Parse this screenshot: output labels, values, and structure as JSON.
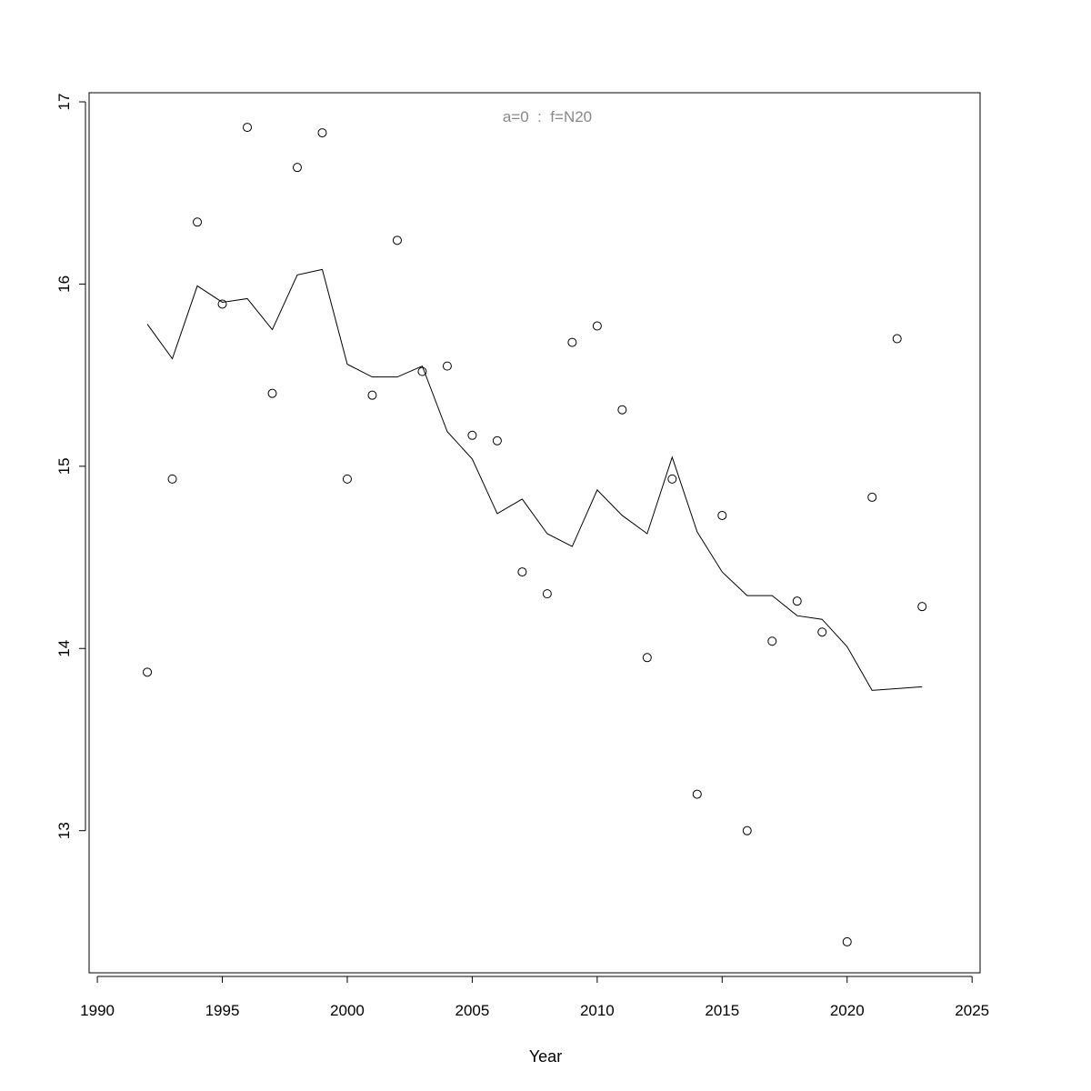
{
  "chart_data": {
    "type": "scatter",
    "title": "a=0  :  f=N20",
    "xlabel": "Year",
    "ylabel": "",
    "xlim": [
      1989.67,
      2025.32
    ],
    "ylim": [
      12.22,
      17.05
    ],
    "xticks": [
      1990,
      1995,
      2000,
      2005,
      2010,
      2015,
      2020,
      2025
    ],
    "yticks": [
      13,
      14,
      15,
      16,
      17
    ],
    "grid": false,
    "title_color": "#888888",
    "x": [
      1992,
      1993,
      1994,
      1995,
      1996,
      1997,
      1998,
      1999,
      2000,
      2001,
      2002,
      2003,
      2004,
      2005,
      2006,
      2007,
      2008,
      2009,
      2010,
      2011,
      2012,
      2013,
      2014,
      2015,
      2016,
      2017,
      2018,
      2019,
      2020,
      2021,
      2022,
      2023
    ],
    "series": [
      {
        "type": "points",
        "values": [
          13.87,
          14.93,
          16.34,
          15.89,
          16.86,
          15.4,
          16.64,
          16.83,
          14.93,
          15.39,
          16.24,
          15.52,
          15.55,
          15.17,
          15.14,
          14.42,
          14.3,
          15.68,
          15.77,
          15.31,
          13.95,
          14.93,
          13.2,
          14.73,
          13.0,
          14.04,
          14.26,
          14.09,
          12.39,
          14.83,
          15.7,
          14.23
        ]
      },
      {
        "type": "line",
        "values": [
          15.78,
          15.59,
          15.99,
          15.9,
          15.92,
          15.75,
          16.05,
          16.08,
          15.56,
          15.49,
          15.49,
          15.55,
          15.19,
          15.04,
          14.74,
          14.82,
          14.63,
          14.56,
          14.87,
          14.73,
          14.63,
          15.05,
          14.64,
          14.42,
          14.29,
          14.29,
          14.18,
          14.16,
          14.01,
          13.77,
          13.78,
          13.79
        ]
      }
    ]
  }
}
